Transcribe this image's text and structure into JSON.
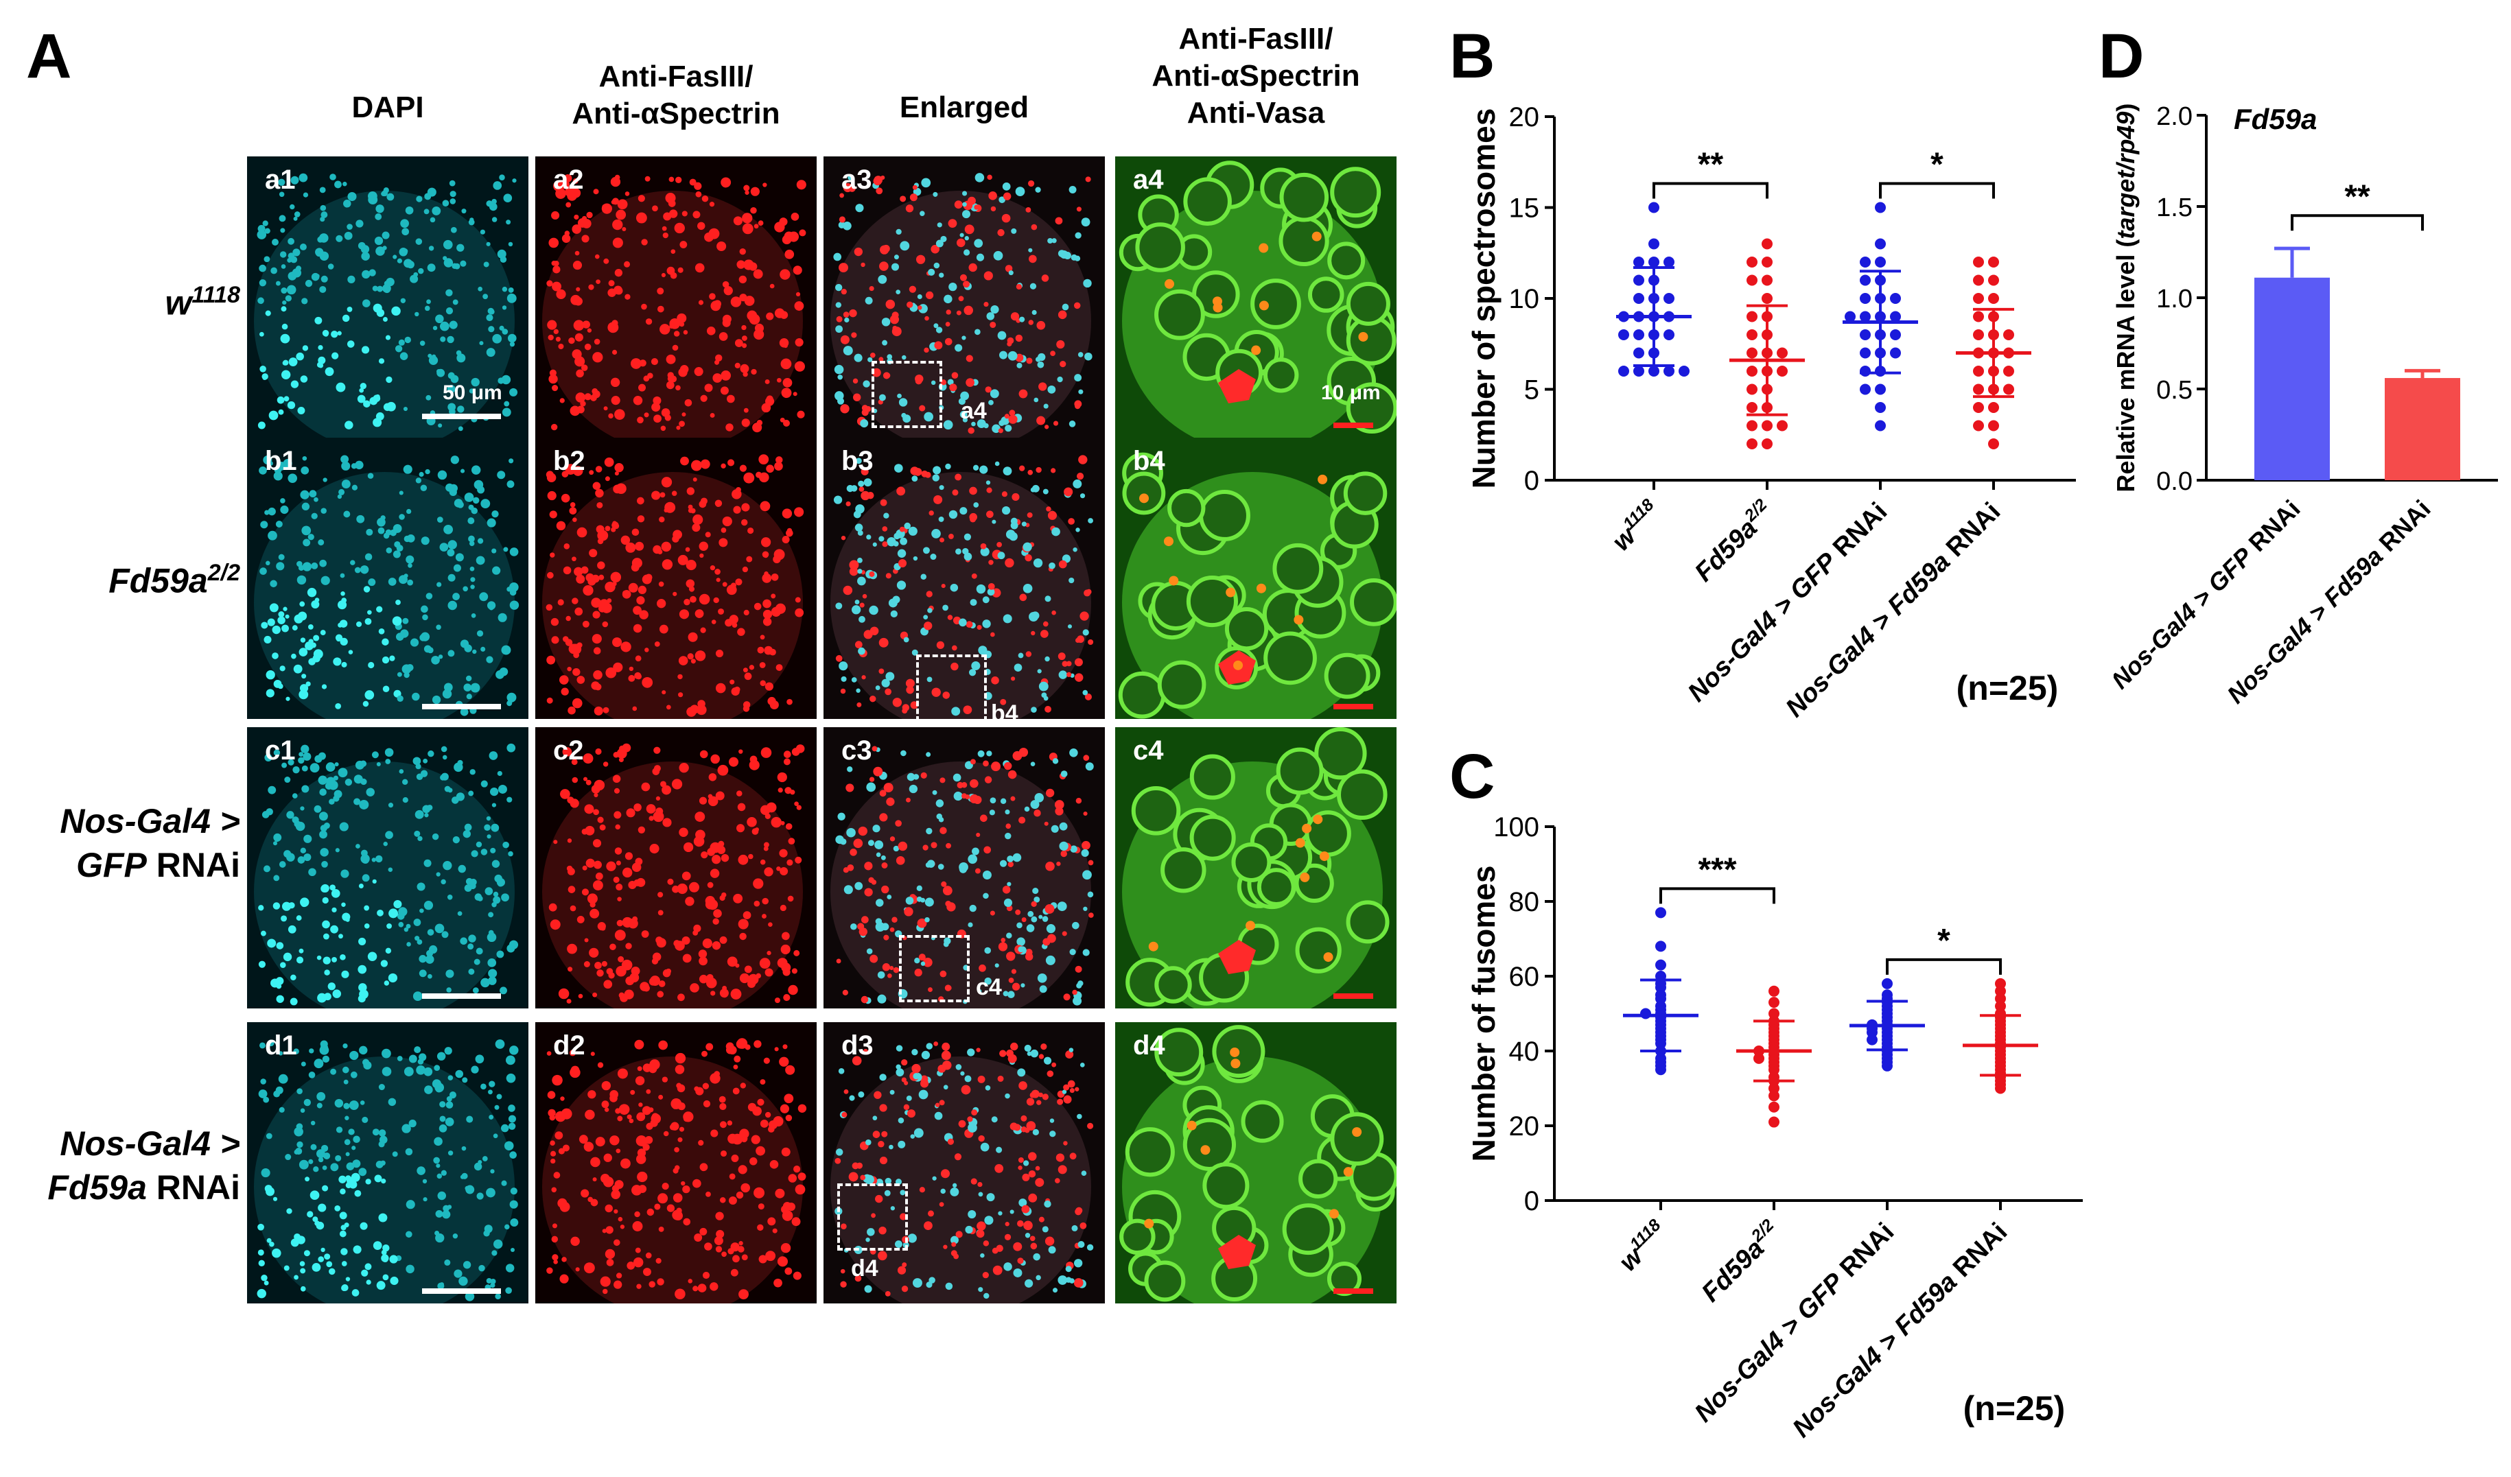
{
  "panels": {
    "A": "A",
    "B": "B",
    "C": "C",
    "D": "D"
  },
  "panel_a": {
    "columns": [
      "DAPI",
      "Anti-FasIII/\nAnti-αSpectrin",
      "Enlarged",
      "Anti-FasIII/\nAnti-αSpectrin\nAnti-Vasa"
    ],
    "rows": [
      {
        "pre": "w",
        "sup": "1118",
        "post": ""
      },
      {
        "pre": "Fd59a",
        "sup": "2/2",
        "post": ""
      },
      {
        "line1": "Nos-Gal4 >",
        "line2_it": "GFP",
        "line2_rest": " RNAi"
      },
      {
        "line1": "Nos-Gal4 >",
        "line2_it": "Fd59a",
        "line2_rest": " RNAi"
      }
    ],
    "tiles": [
      [
        "a1",
        "a2",
        "a3",
        "a4"
      ],
      [
        "b1",
        "b2",
        "b3",
        "b4"
      ],
      [
        "c1",
        "c2",
        "c3",
        "c4"
      ],
      [
        "d1",
        "d2",
        "d3",
        "d4"
      ]
    ],
    "insets": [
      "a4",
      "b4",
      "c4",
      "d4"
    ],
    "scale_labels": {
      "dapi": "50 μm",
      "zoom": "10 μm"
    }
  },
  "chart_data": [
    {
      "id": "B",
      "type": "scatter",
      "ylabel": "Number of spectrosomes",
      "ylim": [
        0,
        20
      ],
      "yticks": [
        0,
        5,
        10,
        15,
        20
      ],
      "categories": [
        {
          "pre": "w",
          "sup": "1118",
          "post": ""
        },
        {
          "pre": "Fd59a",
          "sup": "2/2",
          "post": ""
        },
        {
          "pre": "Nos-Gal4 > ",
          "it": "GFP",
          "post": " RNAi"
        },
        {
          "pre": "Nos-Gal4 > ",
          "it": "Fd59a",
          "post": " RNAi"
        }
      ],
      "colors": [
        "#1a1adb",
        "#e8141c",
        "#1a1adb",
        "#e8141c"
      ],
      "points": [
        [
          15,
          13,
          12,
          12,
          12,
          11,
          11,
          10,
          10,
          10,
          9,
          9,
          9,
          9,
          8,
          8,
          8,
          8,
          7,
          7,
          6,
          6,
          6,
          6,
          6
        ],
        [
          13,
          12,
          12,
          11,
          11,
          10,
          9,
          9,
          8,
          8,
          7,
          7,
          7,
          6,
          6,
          6,
          5,
          5,
          4,
          4,
          3,
          3,
          3,
          2,
          2
        ],
        [
          15,
          13,
          12,
          12,
          11,
          11,
          10,
          10,
          10,
          9,
          9,
          9,
          9,
          8,
          8,
          8,
          7,
          7,
          7,
          6,
          6,
          5,
          5,
          4,
          3
        ],
        [
          12,
          12,
          11,
          11,
          10,
          10,
          9,
          9,
          8,
          8,
          8,
          7,
          7,
          7,
          6,
          6,
          6,
          5,
          5,
          5,
          4,
          4,
          3,
          3,
          2
        ]
      ],
      "mean": [
        9.0,
        6.6,
        8.7,
        7.0
      ],
      "sd": [
        2.7,
        3.0,
        2.8,
        2.4
      ],
      "significance": [
        {
          "from": 0,
          "to": 1,
          "label": "**"
        },
        {
          "from": 2,
          "to": 3,
          "label": "*"
        }
      ],
      "note": "(n=25)"
    },
    {
      "id": "C",
      "type": "scatter",
      "ylabel": "Number of fusomes",
      "ylim": [
        0,
        100
      ],
      "yticks": [
        0,
        20,
        40,
        60,
        80,
        100
      ],
      "categories": [
        {
          "pre": "w",
          "sup": "1118",
          "post": ""
        },
        {
          "pre": "Fd59a",
          "sup": "2/2",
          "post": ""
        },
        {
          "pre": "Nos-Gal4 > ",
          "it": "GFP",
          "post": " RNAi"
        },
        {
          "pre": "Nos-Gal4 > ",
          "it": "Fd59a",
          "post": " RNAi"
        }
      ],
      "colors": [
        "#1a1adb",
        "#e8141c",
        "#1a1adb",
        "#e8141c"
      ],
      "points": [
        [
          77,
          68,
          63,
          60,
          58,
          57,
          55,
          54,
          52,
          51,
          50,
          50,
          49,
          48,
          47,
          46,
          45,
          44,
          43,
          42,
          40,
          38,
          37,
          36,
          35
        ],
        [
          56,
          53,
          50,
          48,
          47,
          46,
          45,
          44,
          43,
          42,
          41,
          40,
          40,
          39,
          38,
          38,
          37,
          36,
          35,
          33,
          32,
          30,
          28,
          25,
          21
        ],
        [
          58,
          55,
          54,
          53,
          52,
          51,
          50,
          49,
          48,
          47,
          47,
          46,
          46,
          45,
          45,
          44,
          43,
          43,
          42,
          41,
          40,
          39,
          38,
          37,
          36
        ],
        [
          58,
          56,
          54,
          52,
          50,
          49,
          48,
          47,
          46,
          45,
          44,
          43,
          42,
          41,
          40,
          39,
          38,
          37,
          36,
          35,
          34,
          33,
          32,
          31,
          30
        ]
      ],
      "mean": [
        49.5,
        40.0,
        46.8,
        41.5
      ],
      "sd": [
        9.5,
        8.0,
        6.5,
        8.0
      ],
      "significance": [
        {
          "from": 0,
          "to": 1,
          "label": "***"
        },
        {
          "from": 2,
          "to": 3,
          "label": "*"
        }
      ],
      "note": "(n=25)"
    },
    {
      "id": "D",
      "type": "bar",
      "title": "Fd59a",
      "ylabel": "Relative mRNA level (target/rp49)",
      "ylim": [
        0,
        2.0
      ],
      "yticks": [
        "0.0",
        "0.5",
        "1.0",
        "1.5",
        "2.0"
      ],
      "categories": [
        {
          "pre": "Nos-Gal4 > ",
          "it": "GFP",
          "post": " RNAi"
        },
        {
          "pre": "Nos-Gal4 > ",
          "it": "Fd59a",
          "post": " RNAi"
        }
      ],
      "values": [
        1.11,
        0.56
      ],
      "errors": [
        0.16,
        0.04
      ],
      "colors": [
        "#5b5bf5",
        "#f54b4b"
      ],
      "significance": [
        {
          "from": 0,
          "to": 1,
          "label": "**"
        }
      ]
    }
  ]
}
